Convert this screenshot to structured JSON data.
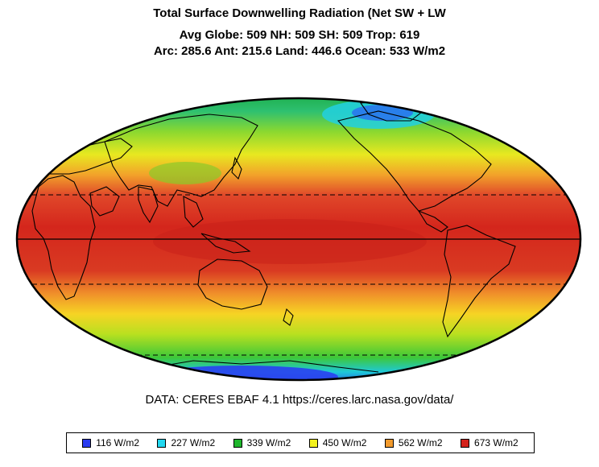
{
  "title": {
    "line1": "Total Surface Downwelling Radiation (Net SW + LW",
    "line2": "Avg Globe: 509  NH: 509  SH: 509  Trop: 619",
    "line3": "Arc: 285.6  Ant: 215.6  Land: 446.6 Ocean: 533 W/m2"
  },
  "source": "DATA: CERES EBAF 4.1 https://ceres.larc.nasa.gov/data/",
  "legend": [
    {
      "label": "116 W/m2",
      "color": "#2a3cf0"
    },
    {
      "label": "227 W/m2",
      "color": "#22d8f0"
    },
    {
      "label": "339 W/m2",
      "color": "#1fb62c"
    },
    {
      "label": "450 W/m2",
      "color": "#f4f21e"
    },
    {
      "label": "562 W/m2",
      "color": "#f29a2c"
    },
    {
      "label": "673 W/m2",
      "color": "#d4231c"
    }
  ]
}
